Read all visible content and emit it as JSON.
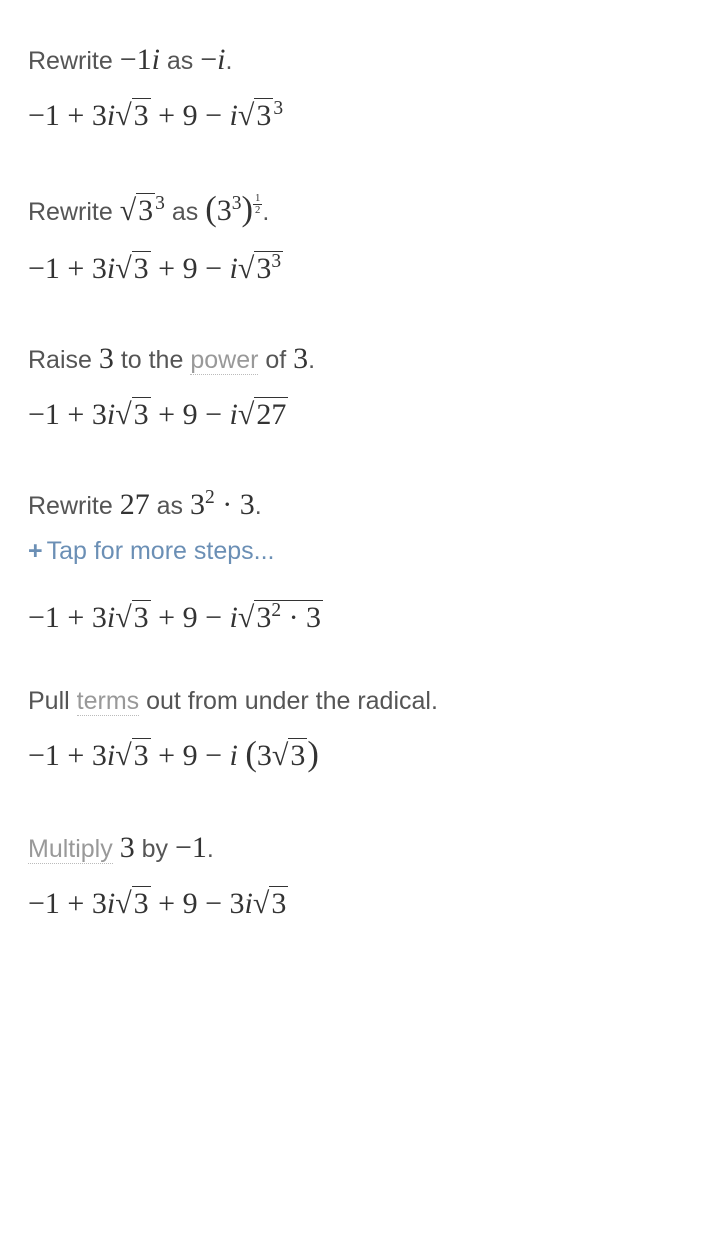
{
  "colors": {
    "text_body": "#555555",
    "text_math": "#333333",
    "term_link": "#999999",
    "tap_link": "#6b8fb5",
    "background": "#ffffff"
  },
  "typography": {
    "instruction_fontsize": 25,
    "expression_fontsize": 30,
    "tap_fontsize": 25
  },
  "steps": [
    {
      "instruction_parts": [
        {
          "text": "Rewrite ",
          "type": "plain"
        },
        {
          "text": "−1i",
          "type": "math"
        },
        {
          "text": " as ",
          "type": "plain"
        },
        {
          "text": "−i",
          "type": "math"
        },
        {
          "text": ".",
          "type": "plain"
        }
      ],
      "expression": "−1 + 3i√3 + 9 − i√3³"
    },
    {
      "instruction_parts": [
        {
          "text": "Rewrite ",
          "type": "plain"
        },
        {
          "text": "√3³",
          "type": "math"
        },
        {
          "text": " as ",
          "type": "plain"
        },
        {
          "text": "(3³)^(1/2)",
          "type": "math"
        },
        {
          "text": ".",
          "type": "plain"
        }
      ],
      "expression": "−1 + 3i√3 + 9 − i√(3³)"
    },
    {
      "instruction_parts": [
        {
          "text": "Raise ",
          "type": "plain"
        },
        {
          "text": "3",
          "type": "math"
        },
        {
          "text": " to the ",
          "type": "plain"
        },
        {
          "text": "power",
          "type": "term"
        },
        {
          "text": " of ",
          "type": "plain"
        },
        {
          "text": "3",
          "type": "math"
        },
        {
          "text": ".",
          "type": "plain"
        }
      ],
      "expression": "−1 + 3i√3 + 9 − i√27"
    },
    {
      "instruction_parts": [
        {
          "text": "Rewrite ",
          "type": "plain"
        },
        {
          "text": "27",
          "type": "math"
        },
        {
          "text": " as ",
          "type": "plain"
        },
        {
          "text": "3² · 3",
          "type": "math"
        },
        {
          "text": ".",
          "type": "plain"
        }
      ],
      "tap_more": "Tap for more steps...",
      "expression": "−1 + 3i√3 + 9 − i√(3² · 3)"
    },
    {
      "instruction_parts": [
        {
          "text": "Pull ",
          "type": "plain"
        },
        {
          "text": "terms",
          "type": "term"
        },
        {
          "text": " out from under the radical.",
          "type": "plain"
        }
      ],
      "expression": "−1 + 3i√3 + 9 − i(3√3)"
    },
    {
      "instruction_parts": [
        {
          "text": "Multiply",
          "type": "term"
        },
        {
          "text": " ",
          "type": "plain"
        },
        {
          "text": "3",
          "type": "math"
        },
        {
          "text": " by ",
          "type": "plain"
        },
        {
          "text": "−1",
          "type": "math"
        },
        {
          "text": ".",
          "type": "plain"
        }
      ],
      "expression": "−1 + 3i√3 + 9 − 3i√3"
    }
  ]
}
